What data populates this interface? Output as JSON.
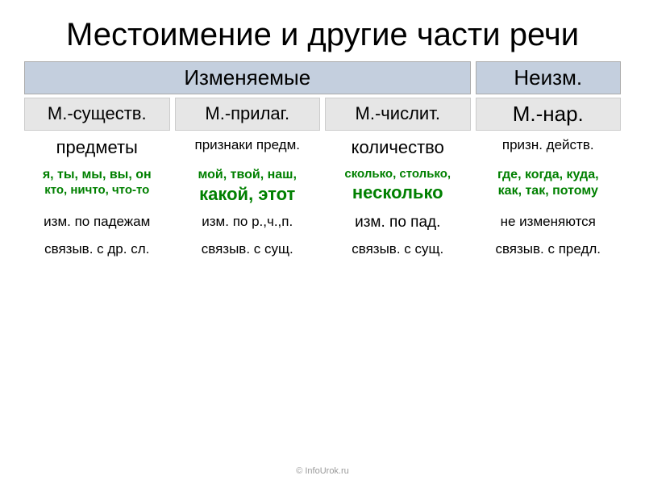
{
  "title": "Местоимение и другие части речи",
  "headers": {
    "changeable": "Изменяемые",
    "unchangeable": "Неизм."
  },
  "subheaders": {
    "col1": "М.-существ.",
    "col2": "М.-прилаг.",
    "col3": "М.-числит.",
    "col4": "М.-нар."
  },
  "categories": {
    "col1": "предметы",
    "col2": "признаки предм.",
    "col3": "количество",
    "col4": "призн. действ."
  },
  "examples": {
    "col1_line1": "я, ты, мы, вы, он",
    "col1_line2": "кто, ничто, что-то",
    "col2_line1": "мой, твой, наш,",
    "col2_line2": "какой, этот",
    "col3_line1": "сколько, столько,",
    "col3_line2": "несколько",
    "col4_line1": "где, когда, куда,",
    "col4_line2": "как, так, потому"
  },
  "grammar": {
    "col1": "изм. по падежам",
    "col2": "изм. по р.,ч.,п.",
    "col3": "изм. по пад.",
    "col4": "не изменяются"
  },
  "connection": {
    "col1": "связыв. с др. сл.",
    "col2": "связыв. с сущ.",
    "col3": "связыв. с сущ.",
    "col4": "связыв. с предл."
  },
  "footer": "© InfoUrok.ru",
  "colors": {
    "header_bg": "#c4cfde",
    "sub_bg": "#e6e6e6",
    "example_text": "#008000"
  }
}
